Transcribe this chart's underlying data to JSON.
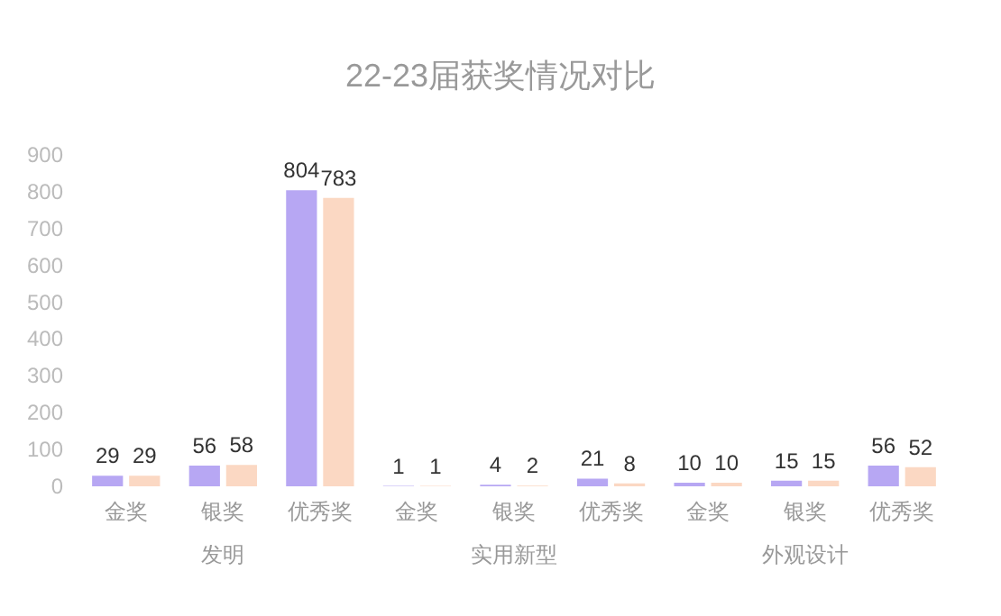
{
  "chart_data": {
    "type": "bar",
    "title": "22-23届获奖情况对比",
    "categories": [
      "金奖",
      "银奖",
      "优秀奖",
      "金奖",
      "银奖",
      "优秀奖",
      "金奖",
      "银奖",
      "优秀奖"
    ],
    "series": [
      {
        "color": "#b7a7f3",
        "values": [
          29,
          56,
          804,
          1,
          4,
          21,
          10,
          15,
          56
        ]
      },
      {
        "color": "#fbd8c3",
        "values": [
          29,
          58,
          783,
          1,
          2,
          8,
          10,
          15,
          52
        ]
      }
    ],
    "annotations": [
      "发明",
      "实用新型",
      "外观设计"
    ],
    "ylim": [
      0,
      900
    ],
    "yticks": [
      0,
      100,
      200,
      300,
      400,
      500,
      600,
      700,
      800,
      900
    ],
    "grid": false,
    "data_labels": true
  }
}
